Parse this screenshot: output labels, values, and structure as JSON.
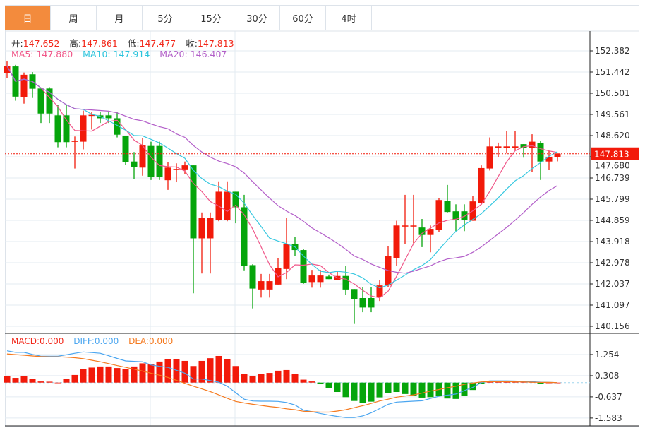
{
  "tabs": [
    {
      "label": "日",
      "active": true
    },
    {
      "label": "周",
      "active": false
    },
    {
      "label": "月",
      "active": false
    },
    {
      "label": "5分",
      "active": false
    },
    {
      "label": "15分",
      "active": false
    },
    {
      "label": "30分",
      "active": false
    },
    {
      "label": "60分",
      "active": false
    },
    {
      "label": "4时",
      "active": false
    }
  ],
  "ohlc_info": {
    "open_label": "开:",
    "open": "147.652",
    "high_label": "高:",
    "high": "147.861",
    "low_label": "低:",
    "low": "147.477",
    "close_label": "收:",
    "close": "147.813"
  },
  "ma_info": {
    "ma5": "MA5: 147.880",
    "ma10": "MA10: 147.914",
    "ma20": "MA20: 146.407"
  },
  "macd_info": {
    "macd": "MACD:0.000",
    "diff": "DIFF:0.000",
    "dea": "DEA:0.000"
  },
  "colors": {
    "up": "#f21a0a",
    "down": "#05a50b",
    "ma5": "#f0588a",
    "ma10": "#38c8e0",
    "ma20": "#b35fc9",
    "diff": "#4ba6f0",
    "dea": "#f57a1f",
    "active_tab": "#f38b3d"
  },
  "chart_data": [
    {
      "type": "candlestick",
      "grid": true,
      "ylim": [
        140.156,
        152.382
      ],
      "yticks": [
        "152.382",
        "151.442",
        "150.501",
        "149.561",
        "148.620",
        "147.680",
        "146.739",
        "145.799",
        "144.859",
        "143.918",
        "142.978",
        "142.037",
        "141.097",
        "140.156"
      ],
      "last_price": "147.813",
      "ma_periods": [
        5,
        10,
        20
      ],
      "candles": [
        [
          151.38,
          151.91,
          151.19,
          151.71
        ],
        [
          151.69,
          151.76,
          150.17,
          150.35
        ],
        [
          150.33,
          151.42,
          150.04,
          151.32
        ],
        [
          151.34,
          151.44,
          150.29,
          150.7
        ],
        [
          150.71,
          150.71,
          149.18,
          149.6
        ],
        [
          150.71,
          150.77,
          149.18,
          149.6
        ],
        [
          149.52,
          149.98,
          148.1,
          148.33
        ],
        [
          149.52,
          149.98,
          148.1,
          148.33
        ],
        [
          148.35,
          148.58,
          147.16,
          148.39
        ],
        [
          148.35,
          149.73,
          148.01,
          149.52
        ],
        [
          149.5,
          149.66,
          148.89,
          149.54
        ],
        [
          149.52,
          149.66,
          149.18,
          149.39
        ],
        [
          149.52,
          149.66,
          149.18,
          149.39
        ],
        [
          149.39,
          149.66,
          148.54,
          148.66
        ],
        [
          148.6,
          148.6,
          147.33,
          147.45
        ],
        [
          147.47,
          147.89,
          146.68,
          147.22
        ],
        [
          147.2,
          148.52,
          146.84,
          148.18
        ],
        [
          148.16,
          148.35,
          146.65,
          146.8
        ],
        [
          148.16,
          148.35,
          146.65,
          146.8
        ],
        [
          146.64,
          147.45,
          146.21,
          147.2
        ],
        [
          147.09,
          147.39,
          146.55,
          147.14
        ],
        [
          147.12,
          147.47,
          146.91,
          147.3
        ],
        [
          147.3,
          147.3,
          141.62,
          144.06
        ],
        [
          144.06,
          145.21,
          142.5,
          144.98
        ],
        [
          144.06,
          145.21,
          142.5,
          144.98
        ],
        [
          144.86,
          146.59,
          144.82,
          146.13
        ],
        [
          144.86,
          146.59,
          144.82,
          146.13
        ],
        [
          146.13,
          146.13,
          144.73,
          145.44
        ],
        [
          145.44,
          145.99,
          142.64,
          142.85
        ],
        [
          142.87,
          142.91,
          140.95,
          141.83
        ],
        [
          141.79,
          142.48,
          141.43,
          142.16
        ],
        [
          141.79,
          142.48,
          141.43,
          142.16
        ],
        [
          142.01,
          143.17,
          142.01,
          142.75
        ],
        [
          142.7,
          144.96,
          142.25,
          143.81
        ],
        [
          143.81,
          144.11,
          143.27,
          143.54
        ],
        [
          143.54,
          143.58,
          142.04,
          142.08
        ],
        [
          142.12,
          142.66,
          141.87,
          142.41
        ],
        [
          142.12,
          142.66,
          141.87,
          142.41
        ],
        [
          142.37,
          142.45,
          142.25,
          142.25
        ],
        [
          142.2,
          142.62,
          142.2,
          142.39
        ],
        [
          142.39,
          142.85,
          141.56,
          141.79
        ],
        [
          141.81,
          141.81,
          140.26,
          141.35
        ],
        [
          141.41,
          141.91,
          140.78,
          140.99
        ],
        [
          141.41,
          141.91,
          140.78,
          140.99
        ],
        [
          141.45,
          142.22,
          141.28,
          141.97
        ],
        [
          141.97,
          143.73,
          141.89,
          143.29
        ],
        [
          143.17,
          144.84,
          142.85,
          144.63
        ],
        [
          144.59,
          145.99,
          143.81,
          144.63
        ],
        [
          144.59,
          145.99,
          143.81,
          144.63
        ],
        [
          144.54,
          144.92,
          143.67,
          144.21
        ],
        [
          144.21,
          144.63,
          143.44,
          144.48
        ],
        [
          144.44,
          145.84,
          144.33,
          145.76
        ],
        [
          145.71,
          146.43,
          145.21,
          145.23
        ],
        [
          145.26,
          145.57,
          144.38,
          144.86
        ],
        [
          145.26,
          145.57,
          144.38,
          144.86
        ],
        [
          144.84,
          145.95,
          144.84,
          145.7
        ],
        [
          145.63,
          147.3,
          145.55,
          147.18
        ],
        [
          147.16,
          148.54,
          147.07,
          148.14
        ],
        [
          148.08,
          148.31,
          147.66,
          148.14
        ],
        [
          148.08,
          148.81,
          147.83,
          148.14
        ],
        [
          148.08,
          148.81,
          147.95,
          148.14
        ],
        [
          148.24,
          148.24,
          147.64,
          148.08
        ],
        [
          148.08,
          148.68,
          146.99,
          148.35
        ],
        [
          148.28,
          148.39,
          146.65,
          147.47
        ],
        [
          147.47,
          147.95,
          147.09,
          147.66
        ],
        [
          147.652,
          147.861,
          147.477,
          147.813
        ]
      ]
    },
    {
      "type": "bar+line",
      "yticks": [
        "1.254",
        "0.308",
        "-0.637",
        "-1.583"
      ],
      "histogram": [
        0.29,
        0.21,
        0.28,
        0.17,
        0.05,
        0.04,
        0.0,
        0.15,
        0.34,
        0.59,
        0.67,
        0.72,
        0.72,
        0.65,
        0.6,
        0.72,
        0.86,
        0.81,
        0.94,
        1.04,
        1.04,
        0.97,
        0.74,
        0.97,
        1.09,
        1.19,
        1.05,
        0.74,
        0.37,
        0.28,
        0.37,
        0.43,
        0.53,
        0.56,
        0.37,
        0.13,
        0.05,
        -0.06,
        -0.23,
        -0.42,
        -0.65,
        -0.82,
        -0.91,
        -0.85,
        -0.66,
        -0.48,
        -0.42,
        -0.51,
        -0.6,
        -0.67,
        -0.65,
        -0.6,
        -0.71,
        -0.73,
        -0.58,
        -0.33,
        -0.06,
        0.07,
        0.07,
        0.06,
        0.08,
        0.07,
        0.04,
        -0.04,
        0.0,
        0.0
      ],
      "diff": [
        1.42,
        1.35,
        1.35,
        1.26,
        1.18,
        1.18,
        1.18,
        1.24,
        1.31,
        1.37,
        1.34,
        1.31,
        1.2,
        1.08,
        0.97,
        0.95,
        0.93,
        0.79,
        0.73,
        0.68,
        0.55,
        0.42,
        0.16,
        0.16,
        0.09,
        0.02,
        -0.16,
        -0.45,
        -0.74,
        -0.82,
        -0.83,
        -0.83,
        -0.84,
        -0.89,
        -1.0,
        -1.23,
        -1.3,
        -1.38,
        -1.45,
        -1.51,
        -1.56,
        -1.56,
        -1.49,
        -1.35,
        -1.16,
        -0.97,
        -0.87,
        -0.85,
        -0.83,
        -0.81,
        -0.71,
        -0.61,
        -0.56,
        -0.51,
        -0.36,
        -0.21,
        0.0,
        0.08,
        0.08,
        0.08,
        0.07,
        0.05,
        0.04,
        0.02,
        0.01,
        0.0
      ],
      "dea": [
        1.28,
        1.25,
        1.22,
        1.19,
        1.16,
        1.15,
        1.15,
        1.14,
        1.11,
        1.07,
        1.0,
        0.93,
        0.85,
        0.76,
        0.68,
        0.6,
        0.51,
        0.42,
        0.33,
        0.23,
        0.1,
        -0.03,
        -0.16,
        -0.28,
        -0.4,
        -0.55,
        -0.7,
        -0.84,
        -0.91,
        -0.97,
        -1.02,
        -1.07,
        -1.11,
        -1.17,
        -1.21,
        -1.28,
        -1.3,
        -1.32,
        -1.32,
        -1.27,
        -1.21,
        -1.12,
        -1.03,
        -0.93,
        -0.82,
        -0.74,
        -0.65,
        -0.6,
        -0.55,
        -0.47,
        -0.38,
        -0.31,
        -0.23,
        -0.16,
        -0.08,
        -0.02,
        0.03,
        0.04,
        0.04,
        0.04,
        0.03,
        0.03,
        0.02,
        0.01,
        0.01,
        0.0
      ]
    }
  ]
}
